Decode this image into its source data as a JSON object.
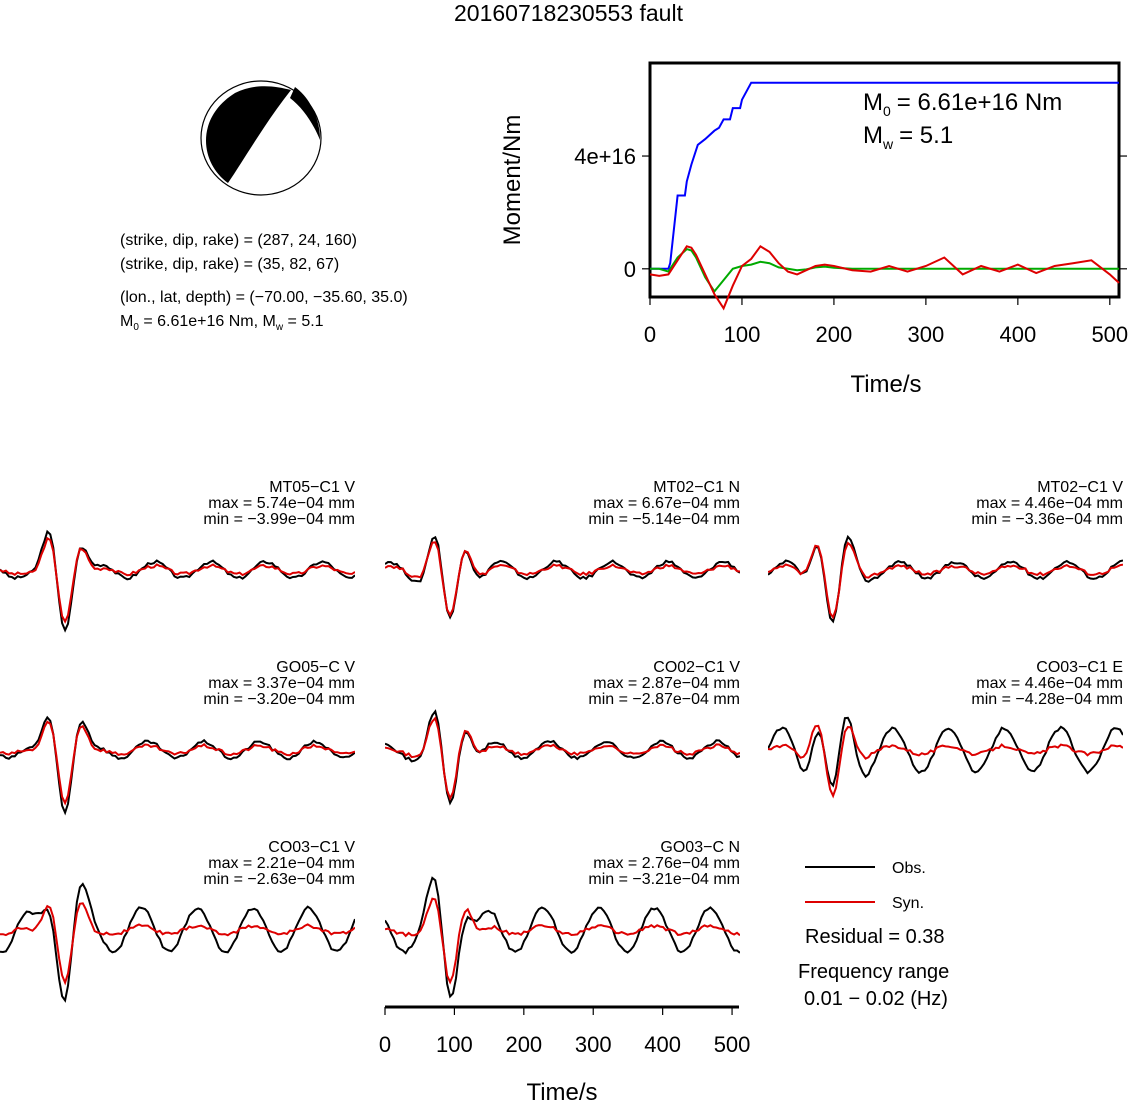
{
  "title": "20160718230553 fault",
  "params": {
    "plane1": "(strike, dip, rake) = (287, 24, 160)",
    "plane2": "(strike, dip, rake) = (35, 82, 67)",
    "location": "(lon., lat, depth) = (−70.00, −35.60, 35.0)",
    "m0_prefix": "M",
    "m0_sub": "0",
    "m0_suffix": " = 6.61e+16 Nm, M",
    "mw_sub": "w",
    "mw_suffix": " = 5.1"
  },
  "moment_plot": {
    "ylabel": "Moment/Nm",
    "xlabel": "Time/s",
    "m0_text": "= 6.61e+16 Nm",
    "mw_text": "= 5.1",
    "m_letter": "M",
    "m0_sub": "0",
    "mw_sub": "w",
    "yticks": [
      "0",
      "4e+16"
    ],
    "xticks": [
      "0",
      "100",
      "200",
      "300",
      "400",
      "500"
    ]
  },
  "chart_data": [
    {
      "type": "line",
      "name": "moment-function",
      "xlabel": "Time/s",
      "ylabel": "Moment/Nm",
      "xlim": [
        0,
        510
      ],
      "ylim": [
        -1e+16,
        7.3e+16
      ],
      "yticks": [
        0,
        4e+16
      ],
      "xticks": [
        0,
        100,
        200,
        300,
        400,
        500
      ],
      "series": [
        {
          "color": "#0000ff",
          "x": [
            0,
            20,
            22,
            30,
            38,
            40,
            45,
            52,
            60,
            70,
            75,
            80,
            87,
            90,
            98,
            100,
            110,
            510
          ],
          "y": [
            0,
            0,
            2000000000000000.0,
            2.6e+16,
            2.6e+16,
            3.1e+16,
            3.7e+16,
            4.4e+16,
            4.6e+16,
            4.9e+16,
            5e+16,
            5.3e+16,
            5.3e+16,
            5.7e+16,
            5.7e+16,
            6e+16,
            6.6e+16,
            6.6e+16
          ]
        },
        {
          "color": "#00aa00",
          "x": [
            0,
            10,
            20,
            30,
            40,
            45,
            50,
            60,
            70,
            80,
            90,
            100,
            110,
            120,
            130,
            140,
            150,
            160,
            170,
            180,
            190,
            200,
            220,
            240,
            260,
            280,
            300,
            510
          ],
          "y": [
            0,
            0,
            -1000000000000000.0,
            4000000000000000.0,
            7000000000000000.0,
            6500000000000000.0,
            4000000000000000.0,
            -3000000000000000.0,
            -8000000000000000.0,
            -4000000000000000.0,
            0,
            1000000000000000.0,
            1500000000000000.0,
            2500000000000000.0,
            2000000000000000.0,
            500000000000000.0,
            0,
            -500000000000000.0,
            -200000000000000.0,
            500000000000000.0,
            800000000000000.0,
            400000000000000.0,
            0,
            0,
            0,
            0,
            0,
            0
          ]
        },
        {
          "color": "#dd0000",
          "x": [
            0,
            10,
            20,
            30,
            40,
            45,
            50,
            60,
            70,
            80,
            90,
            100,
            110,
            120,
            130,
            140,
            150,
            160,
            170,
            180,
            190,
            200,
            220,
            240,
            260,
            280,
            300,
            320,
            340,
            360,
            380,
            400,
            420,
            440,
            460,
            480,
            500,
            510
          ],
          "y": [
            -2000000000000000.0,
            -2500000000000000.0,
            -2000000000000000.0,
            3000000000000000.0,
            8000000000000000.0,
            7500000000000000.0,
            5000000000000000.0,
            -2000000000000000.0,
            -9000000000000000.0,
            -1.4e+16,
            -6000000000000000.0,
            1000000000000000.0,
            3500000000000000.0,
            8000000000000000.0,
            6000000000000000.0,
            2000000000000000.0,
            -1000000000000000.0,
            -2000000000000000.0,
            -500000000000000.0,
            1000000000000000.0,
            1500000000000000.0,
            1000000000000000.0,
            -500000000000000.0,
            -1000000000000000.0,
            1000000000000000.0,
            -1000000000000000.0,
            1000000000000000.0,
            4000000000000000.0,
            -2000000000000000.0,
            1000000000000000.0,
            -1000000000000000.0,
            1500000000000000.0,
            -1500000000000000.0,
            1000000000000000.0,
            2000000000000000.0,
            3000000000000000.0,
            -2000000000000000.0,
            -5000000000000000.0
          ]
        }
      ]
    },
    {
      "type": "line",
      "name": "waveform-fits",
      "xlabel": "Time/s",
      "xlim": [
        0,
        510
      ],
      "xticks": [
        0,
        100,
        200,
        300,
        400,
        500
      ],
      "legend": [
        "Obs.",
        "Syn."
      ],
      "residual": "Residual = 0.38",
      "freq_label": "Frequency range",
      "freq_range": "0.01 − 0.02 (Hz)",
      "stations": [
        {
          "name": "MT05−C1 V",
          "max": "max = 5.74e−04 mm",
          "min": "min = −3.99e−04 mm"
        },
        {
          "name": "MT02−C1 N",
          "max": "max = 6.67e−04 mm",
          "min": "min = −5.14e−04 mm"
        },
        {
          "name": "MT02−C1 V",
          "max": "max = 4.46e−04 mm",
          "min": "min = −3.36e−04 mm"
        },
        {
          "name": "GO05−C V",
          "max": "max = 3.37e−04 mm",
          "min": "min = −3.20e−04 mm"
        },
        {
          "name": "CO02−C1 V",
          "max": "max = 2.87e−04 mm",
          "min": "min = −2.87e−04 mm"
        },
        {
          "name": "CO03−C1 E",
          "max": "max = 4.46e−04 mm",
          "min": "min = −4.28e−04 mm"
        },
        {
          "name": "CO03−C1 V",
          "max": "max = 2.21e−04 mm",
          "min": "min = −2.63e−04 mm"
        },
        {
          "name": "GO03−C N",
          "max": "max = 2.76e−04 mm",
          "min": "min = −3.21e−04 mm"
        }
      ]
    }
  ],
  "colors": {
    "observed": "#000000",
    "synthetic": "#dd0000",
    "moment": "#0000ff",
    "moment_rate": "#00aa00"
  }
}
